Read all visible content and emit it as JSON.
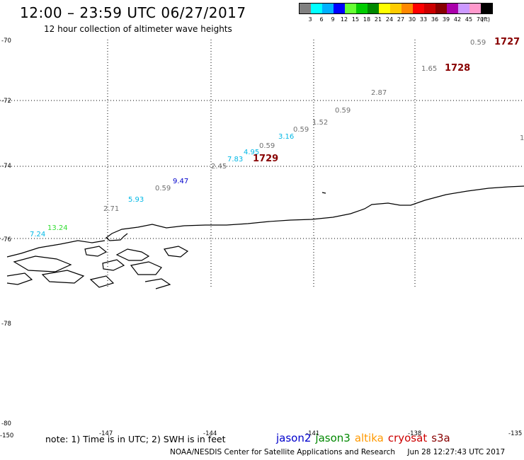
{
  "header": {
    "title": "12:00 – 23:59 UTC 06/27/2017",
    "subtitle": "12 hour collection of altimeter wave heights"
  },
  "legend": {
    "colors": [
      "#808080",
      "#00ffff",
      "#00b0ff",
      "#0000ff",
      "#66ff33",
      "#00cc00",
      "#008800",
      "#ffff00",
      "#ffcc00",
      "#ff8800",
      "#ff0000",
      "#cc0000",
      "#880000",
      "#aa00aa",
      "#cc99ff",
      "#ff99cc",
      "#000000"
    ],
    "labels": [
      "3",
      "6",
      "9",
      "12",
      "15",
      "18",
      "21",
      "24",
      "27",
      "30",
      "33",
      "36",
      "39",
      "42",
      "45",
      "70",
      "(ft)"
    ]
  },
  "map": {
    "lat_labels": [
      "-70",
      "-72",
      "-74",
      "-76",
      "-78",
      "-80"
    ],
    "lon_labels": [
      "-150",
      "-147",
      "-144",
      "-141",
      "-138",
      "-135"
    ],
    "wave_heights": [
      {
        "text": "0.59",
        "color": "#707070"
      },
      {
        "text": "1.65",
        "color": "#707070"
      },
      {
        "text": "2.87",
        "color": "#707070"
      },
      {
        "text": "0.59",
        "color": "#707070"
      },
      {
        "text": "1.52",
        "color": "#707070"
      },
      {
        "text": "0.59",
        "color": "#707070"
      },
      {
        "text": "3.16",
        "color": "#00b8e6"
      },
      {
        "text": "0.59",
        "color": "#707070"
      },
      {
        "text": "4.95",
        "color": "#00b8e6"
      },
      {
        "text": "7.83",
        "color": "#00b8e6"
      },
      {
        "text": "2.45",
        "color": "#707070"
      },
      {
        "text": "9.47",
        "color": "#0000cc"
      },
      {
        "text": "0.59",
        "color": "#707070"
      },
      {
        "text": "5.93",
        "color": "#00b8e6"
      },
      {
        "text": "2.71",
        "color": "#707070"
      },
      {
        "text": "13.24",
        "color": "#33dd33"
      },
      {
        "text": "7.24",
        "color": "#00b8e6"
      }
    ],
    "pass_times": [
      {
        "text": "1727",
        "color": "#880000"
      },
      {
        "text": "1728",
        "color": "#880000"
      },
      {
        "text": "1729",
        "color": "#880000"
      }
    ],
    "edge_mark": "1"
  },
  "footer": {
    "note": "note: 1) Time is in UTC; 2) SWH is in feet",
    "satellites": [
      {
        "name": "jason2",
        "color": "#0000cc"
      },
      {
        "name": "jason3",
        "color": "#008800"
      },
      {
        "name": "altika",
        "color": "#ff9900"
      },
      {
        "name": "cryosat",
        "color": "#cc0000"
      },
      {
        "name": "s3a",
        "color": "#880000"
      }
    ],
    "credit": "NOAA/NESDIS Center for Satellite Applications and Research",
    "timestamp": "Jun 28 12:27:43 UTC 2017"
  }
}
